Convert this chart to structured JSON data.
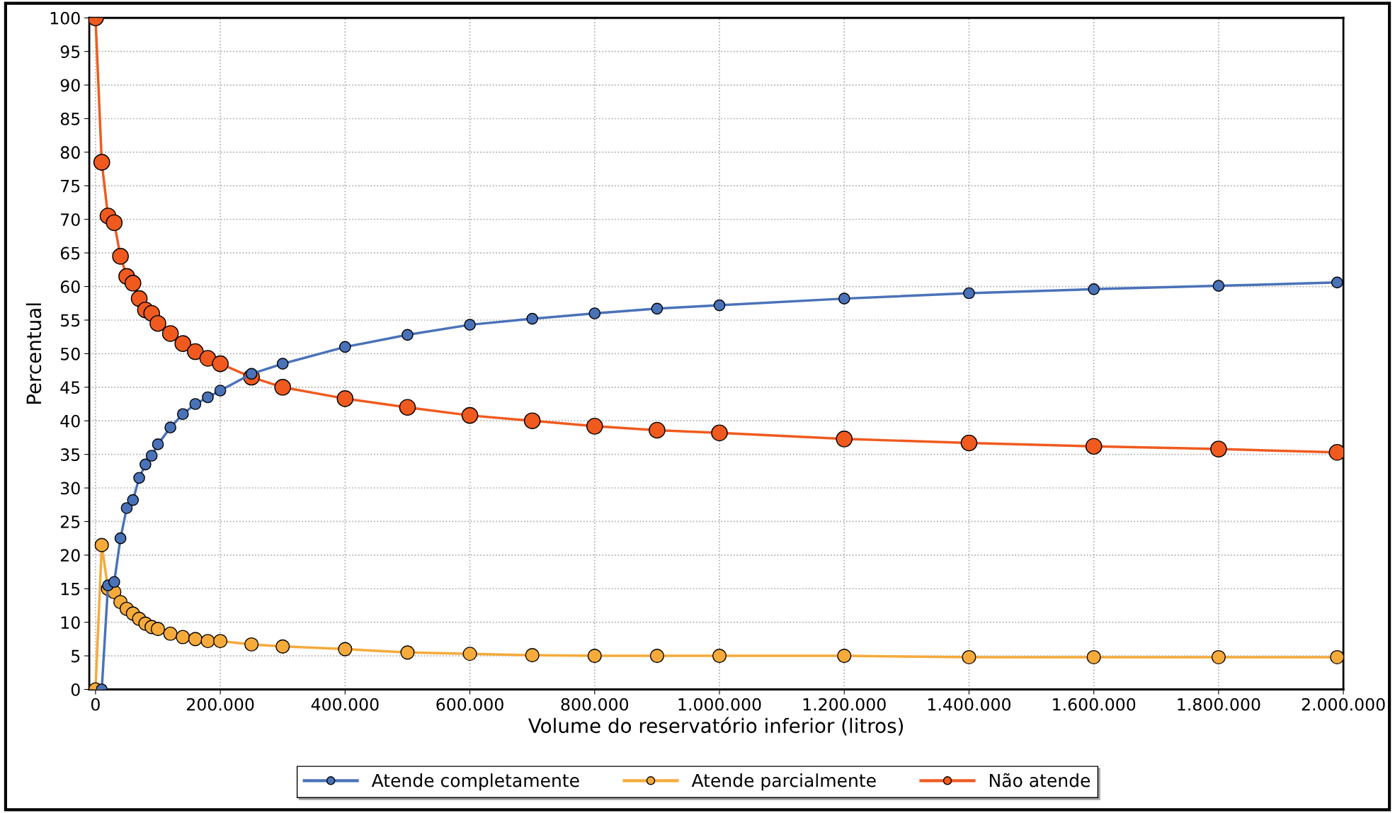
{
  "chart_data": {
    "type": "line",
    "xlabel": "Volume do reservatório inferior (litros)",
    "ylabel": "Percentual",
    "xlim": [
      -10000,
      2000000
    ],
    "ylim": [
      0,
      100
    ],
    "xticks": [
      0,
      {
        "value": 200000,
        "label": "200.000"
      },
      {
        "value": 400000,
        "label": "400.000"
      },
      {
        "value": 600000,
        "label": "600.000"
      },
      {
        "value": 800000,
        "label": "800.000"
      },
      {
        "value": 1000000,
        "label": "1.000.000"
      },
      {
        "value": 1200000,
        "label": "1.200.000"
      },
      {
        "value": 1400000,
        "label": "1.400.000"
      },
      {
        "value": 1600000,
        "label": "1.600.000"
      },
      {
        "value": 1800000,
        "label": "1.800.000"
      },
      {
        "value": 2000000,
        "label": "2.000.000"
      }
    ],
    "yticks": [
      0,
      5,
      10,
      15,
      20,
      25,
      30,
      35,
      40,
      45,
      50,
      55,
      60,
      65,
      70,
      75,
      80,
      85,
      90,
      95,
      100
    ],
    "x": [
      0,
      10000,
      20000,
      30000,
      40000,
      50000,
      60000,
      70000,
      80000,
      90000,
      100000,
      120000,
      140000,
      160000,
      180000,
      200000,
      250000,
      300000,
      400000,
      500000,
      600000,
      700000,
      800000,
      900000,
      1000000,
      1200000,
      1400000,
      1600000,
      1800000,
      1990000
    ],
    "series": [
      {
        "name": "Atende completamente",
        "color": "#4a72b8",
        "values": [
          null,
          0,
          15.5,
          16,
          22.5,
          27,
          28.2,
          31.5,
          33.5,
          34.8,
          36.5,
          39,
          41,
          42.5,
          43.5,
          44.5,
          47,
          48.5,
          51,
          52.8,
          54.3,
          55.2,
          56,
          56.7,
          57.2,
          58.2,
          59,
          59.6,
          60.1,
          60.6
        ]
      },
      {
        "name": "Atende parcialmente",
        "color": "#f5aa3a",
        "values": [
          0,
          21.5,
          15,
          14.5,
          13,
          12,
          11.3,
          10.5,
          9.8,
          9.3,
          9,
          8.3,
          7.8,
          7.5,
          7.2,
          7.2,
          6.7,
          6.4,
          6,
          5.5,
          5.3,
          5.1,
          5,
          5,
          5,
          5,
          4.8,
          4.8,
          4.8,
          4.8
        ]
      },
      {
        "name": "Não atende",
        "color": "#f05a1e",
        "values": [
          100,
          78.5,
          70.5,
          69.5,
          64.5,
          61.5,
          60.5,
          58.2,
          56.5,
          56,
          54.5,
          53,
          51.5,
          50.3,
          49.3,
          48.5,
          46.5,
          45,
          43.3,
          42,
          40.8,
          40,
          39.2,
          38.6,
          38.2,
          37.3,
          36.7,
          36.2,
          35.8,
          35.3
        ]
      }
    ],
    "marker": "circle",
    "line_style": "solid",
    "grid": true,
    "legend": "bottom"
  }
}
